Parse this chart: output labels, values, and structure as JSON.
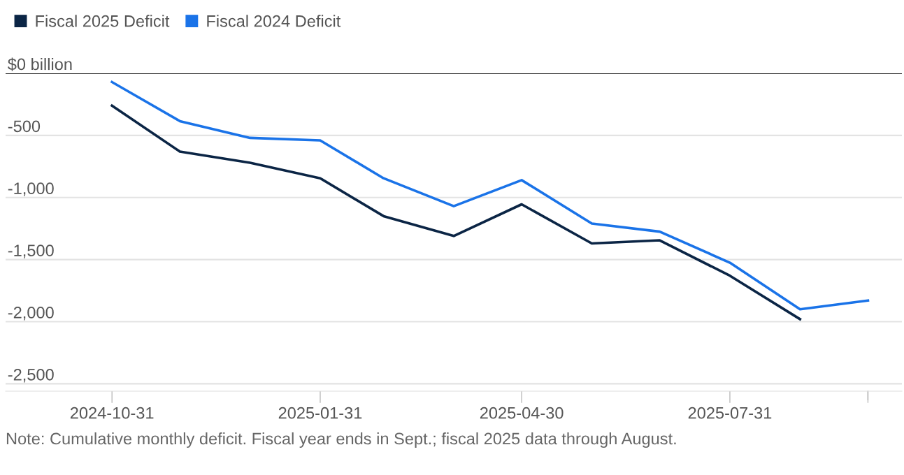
{
  "chart_data": {
    "type": "line",
    "x": [
      "2024-10-31",
      "2024-11-30",
      "2024-12-31",
      "2025-01-31",
      "2025-02-28",
      "2025-03-31",
      "2025-04-30",
      "2025-05-31",
      "2025-06-30",
      "2025-07-31",
      "2025-08-31",
      "2025-09-30"
    ],
    "series": [
      {
        "name": "Fiscal 2025 Deficit",
        "color": "#0b2545",
        "values": [
          -260,
          -630,
          -720,
          -845,
          -1150,
          -1310,
          -1055,
          -1370,
          -1345,
          -1630,
          -1980,
          null
        ]
      },
      {
        "name": "Fiscal 2024 Deficit",
        "color": "#1a73e8",
        "values": [
          -70,
          -385,
          -520,
          -540,
          -845,
          -1070,
          -860,
          -1210,
          -1275,
          -1525,
          -1900,
          -1830
        ]
      }
    ],
    "xlim": [
      "2024-09-14",
      "2025-10-15"
    ],
    "xticks": [
      {
        "value": "2024-10-31",
        "label": "2024-10-31"
      },
      {
        "value": "2025-01-31",
        "label": "2025-01-31"
      },
      {
        "value": "2025-04-30",
        "label": "2025-04-30"
      },
      {
        "value": "2025-07-31",
        "label": "2025-07-31"
      },
      {
        "value": "2025-09-30",
        "label": null
      }
    ],
    "ylim": [
      -2560,
      0
    ],
    "yticks": [
      {
        "value": 0,
        "label": "$0 billion"
      },
      {
        "value": -500,
        "label": "-500"
      },
      {
        "value": -1000,
        "label": "-1,000"
      },
      {
        "value": -1500,
        "label": "-1,500"
      },
      {
        "value": -2000,
        "label": "-2,000"
      },
      {
        "value": -2500,
        "label": "-2,500"
      }
    ],
    "ref_lines": [
      {
        "axis": "y",
        "value": 0,
        "label": null,
        "color": "#222222"
      }
    ],
    "grid": "y",
    "legend": "top left",
    "marker": "none",
    "line_style": "solid",
    "annotations": [
      "Note: Cumulative monthly deficit. Fiscal year ends in Sept.; fiscal 2025 data through August."
    ]
  }
}
